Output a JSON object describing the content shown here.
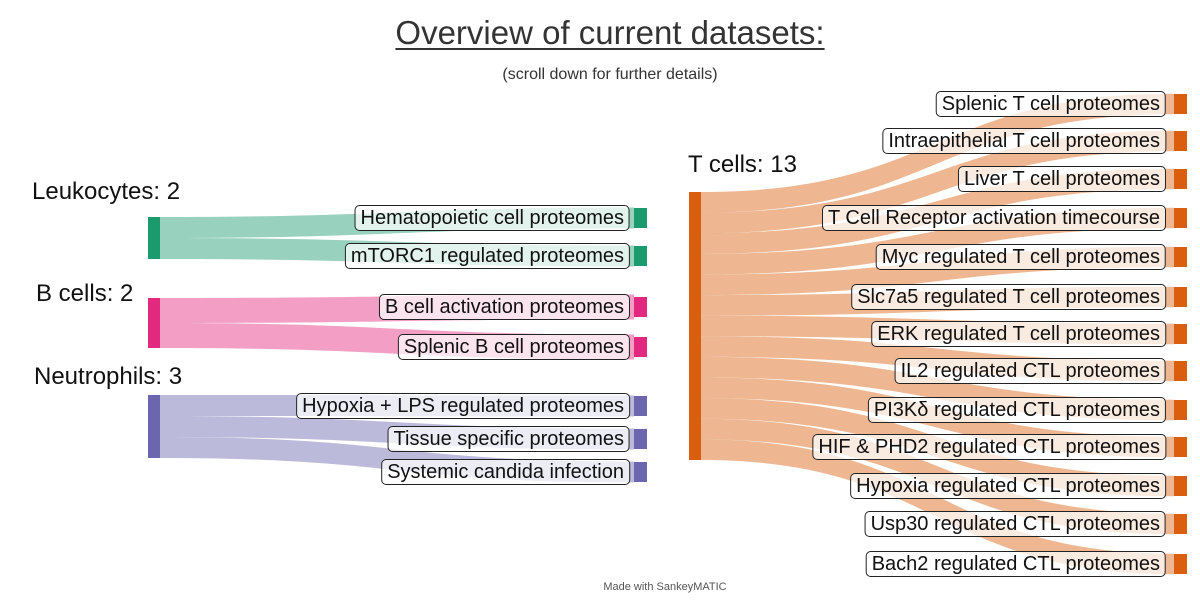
{
  "title": "Overview of current datasets:",
  "subtitle": "(scroll down for further details)",
  "credit": "Made with SankeyMATIC",
  "colors": {
    "leukocytes": "#1b9a6e",
    "b_cells": "#e3297f",
    "neutrophils": "#6b66ad",
    "t_cells": "#d95f0e"
  },
  "groups": [
    {
      "key": "leukocytes",
      "label": "Leukocytes: 2",
      "targets": [
        "Hematopoietic cell proteomes",
        "mTORC1 regulated proteomes"
      ]
    },
    {
      "key": "b_cells",
      "label": "B cells: 2",
      "targets": [
        "B cell activation proteomes",
        "Splenic B cell proteomes"
      ]
    },
    {
      "key": "neutrophils",
      "label": "Neutrophils: 3",
      "targets": [
        "Hypoxia + LPS regulated proteomes",
        "Tissue specific proteomes",
        "Systemic candida infection"
      ]
    },
    {
      "key": "t_cells",
      "label": "T cells: 13",
      "targets": [
        "Splenic T cell proteomes",
        "Intraepithelial T cell proteomes",
        "Liver T cell proteomes",
        "T Cell Receptor activation timecourse",
        "Myc regulated T cell proteomes",
        "Slc7a5 regulated T cell proteomes",
        "ERK regulated T cell proteomes",
        "IL2 regulated CTL proteomes",
        "PI3Kδ regulated CTL proteomes",
        "HIF & PHD2 regulated CTL proteomes",
        "Hypoxia regulated CTL proteomes",
        "Usp30 regulated CTL proteomes",
        "Bach2 regulated CTL proteomes"
      ]
    }
  ]
}
